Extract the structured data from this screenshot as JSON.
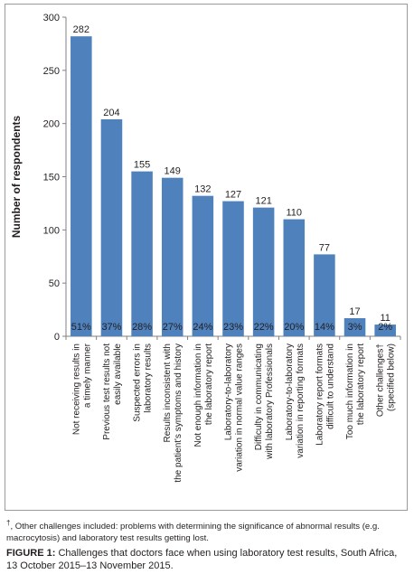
{
  "chart_data": {
    "type": "bar",
    "ylabel": "Number of respondents",
    "ylim": [
      0,
      300
    ],
    "yticks": [
      0,
      50,
      100,
      150,
      200,
      250,
      300
    ],
    "grid": false,
    "bar_color": "#4f81bd",
    "categories": [
      [
        "Not receiving results in",
        "a timely manner"
      ],
      [
        "Previous test results not",
        "easily available"
      ],
      [
        "Suspected errors in",
        "laboratory results"
      ],
      [
        "Results inconsistent with",
        "the patient's symptoms and history"
      ],
      [
        "Not enough information in",
        "the laboratory report"
      ],
      [
        "Laboratory-to-laboratory",
        "variation in normal value ranges"
      ],
      [
        "Difficulty in communicating",
        "with laboratory Professionals"
      ],
      [
        "Laboratory-to-laboratory",
        "variation in reporting formats"
      ],
      [
        "Laboratory report formats",
        "difficult to understand"
      ],
      [
        "Too much information in",
        "the laboratory report"
      ],
      [
        "Other challenges†",
        "(specified below)"
      ]
    ],
    "values": [
      282,
      204,
      155,
      149,
      132,
      127,
      121,
      110,
      77,
      17,
      11
    ],
    "percent_labels": [
      "51%",
      "37%",
      "28%",
      "27%",
      "24%",
      "23%",
      "22%",
      "20%",
      "14%",
      "3%",
      "2%"
    ]
  },
  "footnote": {
    "dagger": "†",
    "text": ", Other challenges included: problems with determining the significance of abnormal results (e.g. macrocytosis) and laboratory test results getting lost."
  },
  "caption": {
    "label": "FIGURE 1:",
    "text": " Challenges that doctors face when using laboratory test results, South Africa, 13 October 2015–13 November 2015."
  }
}
